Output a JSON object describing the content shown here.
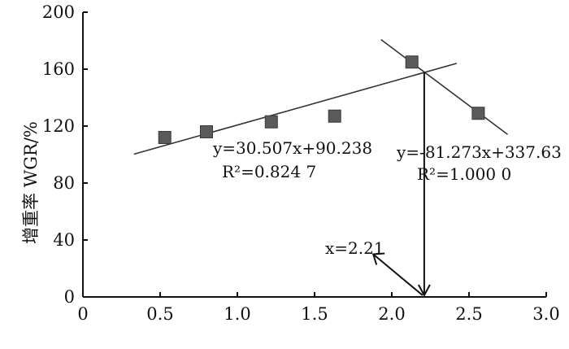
{
  "chart_data": {
    "type": "scatter",
    "title": "",
    "xlabel": "",
    "ylabel": "增重率 WGR/%",
    "xlim": [
      0,
      3.0
    ],
    "ylim": [
      0,
      200
    ],
    "x_ticks": [
      "0",
      "0.5",
      "1.0",
      "1.5",
      "2.0",
      "2.5",
      "3.0"
    ],
    "y_ticks": [
      "0",
      "40",
      "80",
      "120",
      "160",
      "200"
    ],
    "grid": false,
    "points": [
      {
        "x": 0.53,
        "y": 112
      },
      {
        "x": 0.8,
        "y": 116
      },
      {
        "x": 1.22,
        "y": 123
      },
      {
        "x": 1.63,
        "y": 127
      },
      {
        "x": 2.13,
        "y": 165
      },
      {
        "x": 2.56,
        "y": 129
      }
    ],
    "fit_lines": [
      {
        "slope": 30.507,
        "intercept": 90.238,
        "x_range": [
          0.33,
          2.42
        ],
        "equation": "y=30.507x+90.238",
        "r2": "R²=0.824 7"
      },
      {
        "slope": -81.273,
        "intercept": 337.63,
        "x_range": [
          1.93,
          2.75
        ],
        "equation": "y=-81.273x+337.63",
        "r2": "R²=1.000 0"
      }
    ],
    "intersection": {
      "x": 2.21,
      "label": "x=2.21"
    },
    "marker_color": "#5a5a5a",
    "line_color": "#333333"
  }
}
